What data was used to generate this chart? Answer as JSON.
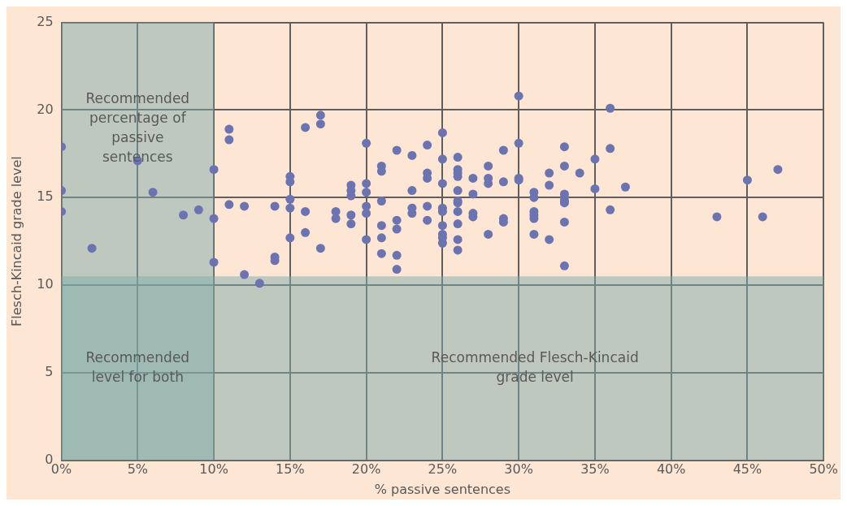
{
  "chart_data": {
    "type": "scatter",
    "xlabel": "% passive sentences",
    "ylabel": "Flesch-Kincaid grade level",
    "xlim": [
      0,
      50
    ],
    "xticks": [
      {
        "value": 0,
        "label": "0%"
      },
      {
        "value": 5,
        "label": "5%"
      },
      {
        "value": 10,
        "label": "10%"
      },
      {
        "value": 15,
        "label": "15%"
      },
      {
        "value": 20,
        "label": "20%"
      },
      {
        "value": 25,
        "label": "25%"
      },
      {
        "value": 30,
        "label": "30%"
      },
      {
        "value": 35,
        "label": "35%"
      },
      {
        "value": 40,
        "label": "40%"
      },
      {
        "value": 45,
        "label": "45%"
      },
      {
        "value": 50,
        "label": "50%"
      }
    ],
    "ylim": [
      0,
      25
    ],
    "yticks": [
      0,
      5,
      10,
      15,
      20,
      25
    ],
    "grid": true,
    "marker": "circle",
    "bands": [
      {
        "axis": "x",
        "from": 0,
        "to": 10,
        "label": "Recommended percentage of passive sentences",
        "color": "#7fa9a8"
      },
      {
        "axis": "y",
        "from": 0,
        "to": 10.5,
        "label": "Recommended Flesch-Kincaid grade level",
        "color": "#7fa9a8"
      }
    ],
    "annotations": [
      "Recommended level for both"
    ],
    "series": [
      {
        "color": "#6b74b0",
        "x": [
          0,
          0,
          0,
          2,
          5,
          6,
          8,
          9,
          10,
          10,
          10,
          11,
          11,
          11,
          12,
          12,
          13,
          14,
          14,
          14,
          15,
          15,
          15,
          15,
          15,
          16,
          16,
          16,
          17,
          17,
          17,
          18,
          18,
          19,
          19,
          19,
          19,
          19,
          20,
          20,
          20,
          20,
          20,
          20,
          21,
          21,
          21,
          21,
          21,
          21,
          22,
          22,
          22,
          22,
          22,
          23,
          23,
          23,
          23,
          24,
          24,
          24,
          24,
          24,
          25,
          25,
          25,
          25,
          25,
          25,
          25,
          25,
          25,
          26,
          26,
          26,
          26,
          26,
          26,
          26,
          26,
          26,
          26,
          26,
          27,
          27,
          27,
          27,
          28,
          28,
          28,
          28,
          29,
          29,
          29,
          29,
          30,
          30,
          30,
          30,
          31,
          31,
          31,
          31,
          31,
          31,
          32,
          32,
          32,
          33,
          33,
          33,
          33,
          33,
          33,
          33,
          33,
          34,
          35,
          35,
          36,
          36,
          36,
          37,
          43,
          45,
          46,
          47
        ],
        "values": [
          17.9,
          15.4,
          14.2,
          12.1,
          17.1,
          15.3,
          14.0,
          14.3,
          16.6,
          13.8,
          11.3,
          18.9,
          18.3,
          14.6,
          14.5,
          10.6,
          10.1,
          14.5,
          11.6,
          11.4,
          16.2,
          15.9,
          14.9,
          14.4,
          12.7,
          19.0,
          14.2,
          13.0,
          19.7,
          19.2,
          12.1,
          14.2,
          13.8,
          15.7,
          15.4,
          15.1,
          14.0,
          13.5,
          18.1,
          15.8,
          15.3,
          14.5,
          14.1,
          12.6,
          16.8,
          16.5,
          14.8,
          13.4,
          12.7,
          11.8,
          17.7,
          13.7,
          13.2,
          11.7,
          10.9,
          17.4,
          15.4,
          14.4,
          14.1,
          18.0,
          16.4,
          16.1,
          14.5,
          13.7,
          18.7,
          17.2,
          15.8,
          14.4,
          14.2,
          13.4,
          12.9,
          12.7,
          12.4,
          17.3,
          16.6,
          16.4,
          16.2,
          15.4,
          14.8,
          14.7,
          14.2,
          13.5,
          12.6,
          12.0,
          16.1,
          15.2,
          14.1,
          13.9,
          16.8,
          16.1,
          15.8,
          12.9,
          17.7,
          15.9,
          13.8,
          13.6,
          20.8,
          18.1,
          16.1,
          16.0,
          15.3,
          15.0,
          14.2,
          14.0,
          13.8,
          12.9,
          16.4,
          15.7,
          12.6,
          17.9,
          16.8,
          15.2,
          15.0,
          14.8,
          14.7,
          13.6,
          11.1,
          16.4,
          17.2,
          15.5,
          20.1,
          17.8,
          14.3,
          15.6,
          13.9,
          16.0,
          13.9,
          16.6
        ]
      }
    ]
  }
}
